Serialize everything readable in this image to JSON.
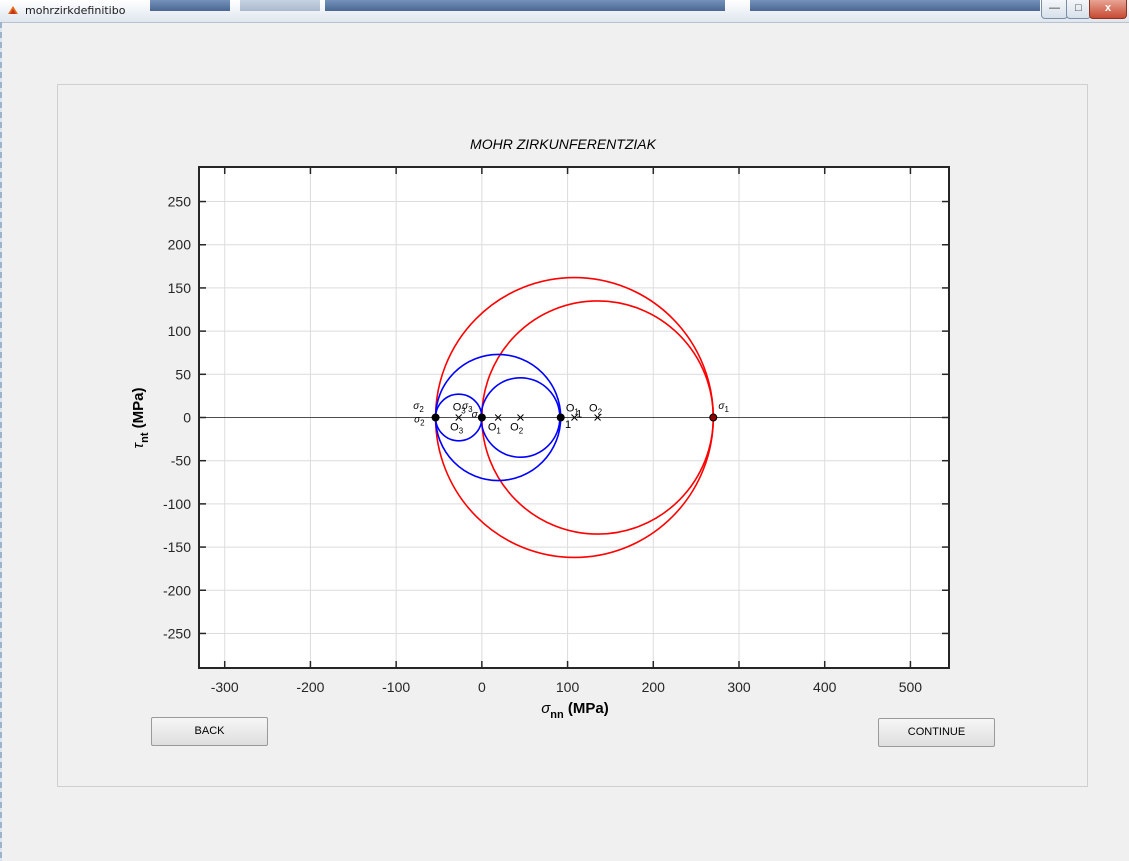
{
  "window": {
    "title": "mohrzirkdefinitibo",
    "min_label": "—",
    "max_label": "□",
    "close_label": "x"
  },
  "buttons": {
    "back_label": "BACK",
    "continue_label": "CONTINUE"
  },
  "chart_data": {
    "type": "scatter",
    "title": "MOHR ZIRKUNFERENTZIAK",
    "xlabel_main": "σ",
    "xlabel_sub": "nn",
    "xlabel_unit": " (MPa)",
    "ylabel_main": "τ",
    "ylabel_sub": "nt",
    "ylabel_unit": " (MPa)",
    "xlim": [
      -330,
      545
    ],
    "ylim": [
      -290,
      290
    ],
    "xticks": [
      -300,
      -200,
      -100,
      0,
      100,
      200,
      300,
      400,
      500
    ],
    "yticks": [
      250,
      200,
      150,
      100,
      50,
      0,
      -50,
      -100,
      -150,
      -200,
      -250
    ],
    "grid": true,
    "circles": [
      {
        "name": "red-outer",
        "color": "#ff0000",
        "center": 108,
        "radius": 162
      },
      {
        "name": "red-inner",
        "color": "#ff0000",
        "center": 135,
        "radius": 135
      },
      {
        "name": "blue-large",
        "color": "#0000ff",
        "center": 19,
        "radius": 73
      },
      {
        "name": "blue-right",
        "color": "#0000ff",
        "center": 45,
        "radius": 46
      },
      {
        "name": "blue-small",
        "color": "#0000ff",
        "center": -27,
        "radius": 27
      }
    ],
    "principal_points": [
      {
        "x": -54,
        "y": 0,
        "color": "#000000"
      },
      {
        "x": 0,
        "y": 0,
        "color": "#000000"
      },
      {
        "x": 92,
        "y": 0,
        "color": "#000000"
      },
      {
        "x": 270,
        "y": 0,
        "color": "#8b0000"
      }
    ],
    "centers": [
      -27,
      19,
      45,
      108,
      135
    ],
    "annotations": [
      {
        "text": "σ",
        "sub": "2",
        "x": -80,
        "y": 10
      },
      {
        "text": "σ",
        "sub": "2",
        "x": -79,
        "y": -6
      },
      {
        "text": "O",
        "sub": "3",
        "x": -34,
        "y": 8
      },
      {
        "text": "σ",
        "sub": "3",
        "x": -23,
        "y": 10
      },
      {
        "text": "σ",
        "sub": "",
        "x": -12,
        "y": 0
      },
      {
        "text": "O",
        "sub": "3",
        "x": -37,
        "y": -15
      },
      {
        "text": "O",
        "sub": "1",
        "x": 7,
        "y": -15
      },
      {
        "text": "O",
        "sub": "2",
        "x": 33,
        "y": -15
      },
      {
        "text": "O",
        "sub": "1",
        "x": 98,
        "y": 7
      },
      {
        "text": "O",
        "sub": "2",
        "x": 125,
        "y": 7
      },
      {
        "text": "1",
        "sub": "",
        "x": 110,
        "y": 0
      },
      {
        "text": "1",
        "sub": "",
        "x": 97,
        "y": -12
      },
      {
        "text": "σ",
        "sub": "1",
        "x": 276,
        "y": 10
      }
    ]
  }
}
